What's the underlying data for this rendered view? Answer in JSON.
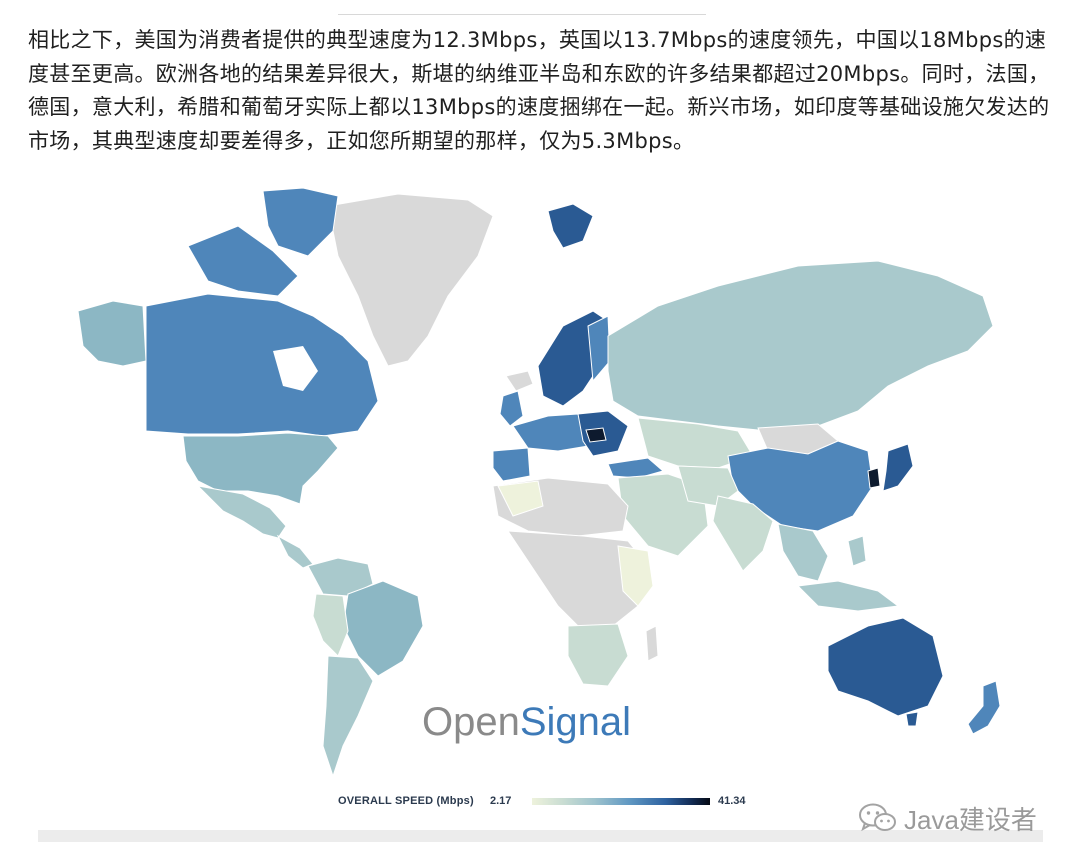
{
  "article": {
    "paragraph": "相比之下，美国为消费者提供的典型速度为12.3Mbps，英国以13.7Mbps的速度领先，中国以18Mbps的速度甚至更高。欧洲各地的结果差异很大，斯堪的纳维亚半岛和东欧的许多结果都超过20Mbps。同时，法国，德国，意大利，希腊和葡萄牙实际上都以13Mbps的速度捆绑在一起。新兴市场，如印度等基础设施欠发达的市场，其典型速度却要差得多，正如您所期望的那样，仅为5.3Mbps。"
  },
  "map": {
    "brand_open": "Open",
    "brand_signal": "Signal",
    "legend": {
      "label": "OVERALL SPEED (Mbps)",
      "min": "2.17",
      "max": "41.34"
    },
    "colors": {
      "no_data": "#d9d9d9",
      "low": "#eef2dc",
      "light_teal": "#a9c9cc",
      "mid_teal": "#8cb7c4",
      "blue": "#4f86ba",
      "dark_blue": "#2a5a93",
      "darkest": "#0d1a2e"
    }
  },
  "watermark": {
    "text": "Java建设者",
    "icon": "wechat-icon"
  }
}
